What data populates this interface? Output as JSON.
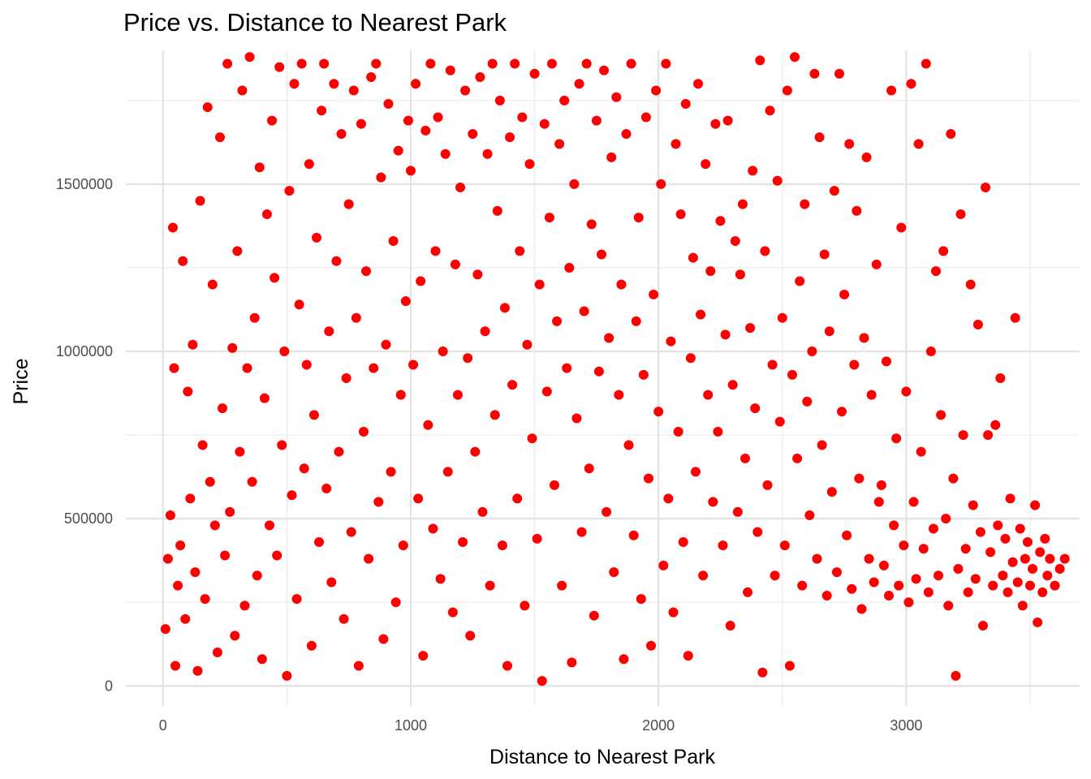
{
  "chart_data": {
    "type": "scatter",
    "title": "Price vs. Distance to Nearest Park",
    "xlabel": "Distance to Nearest Park",
    "ylabel": "Price",
    "xlim": [
      -150,
      3700
    ],
    "ylim": [
      -60000,
      1900000
    ],
    "x_ticks": [
      0,
      1000,
      2000,
      3000
    ],
    "y_ticks": [
      0,
      500000,
      1000000,
      1500000
    ],
    "x_tick_labels": [
      "0",
      "1000",
      "2000",
      "3000"
    ],
    "y_tick_labels": [
      "0",
      "500000",
      "1000000",
      "1500000"
    ],
    "point_color": "#ff0000",
    "grid": true,
    "legend": "none",
    "points_note": "dense cloud; representative sample of points",
    "points": [
      [
        10,
        170000
      ],
      [
        20,
        380000
      ],
      [
        30,
        510000
      ],
      [
        40,
        1370000
      ],
      [
        45,
        950000
      ],
      [
        50,
        60000
      ],
      [
        60,
        300000
      ],
      [
        70,
        420000
      ],
      [
        80,
        1270000
      ],
      [
        90,
        200000
      ],
      [
        100,
        880000
      ],
      [
        110,
        560000
      ],
      [
        120,
        1020000
      ],
      [
        130,
        340000
      ],
      [
        140,
        45000
      ],
      [
        150,
        1450000
      ],
      [
        160,
        720000
      ],
      [
        170,
        260000
      ],
      [
        180,
        1730000
      ],
      [
        190,
        610000
      ],
      [
        200,
        1200000
      ],
      [
        210,
        480000
      ],
      [
        220,
        100000
      ],
      [
        230,
        1640000
      ],
      [
        240,
        830000
      ],
      [
        250,
        390000
      ],
      [
        260,
        1860000
      ],
      [
        270,
        520000
      ],
      [
        280,
        1010000
      ],
      [
        290,
        150000
      ],
      [
        300,
        1300000
      ],
      [
        310,
        700000
      ],
      [
        320,
        1780000
      ],
      [
        330,
        240000
      ],
      [
        340,
        950000
      ],
      [
        350,
        1880000
      ],
      [
        360,
        610000
      ],
      [
        370,
        1100000
      ],
      [
        380,
        330000
      ],
      [
        390,
        1550000
      ],
      [
        400,
        80000
      ],
      [
        410,
        860000
      ],
      [
        420,
        1410000
      ],
      [
        430,
        480000
      ],
      [
        440,
        1690000
      ],
      [
        450,
        1220000
      ],
      [
        460,
        390000
      ],
      [
        470,
        1850000
      ],
      [
        480,
        720000
      ],
      [
        490,
        1000000
      ],
      [
        500,
        30000
      ],
      [
        510,
        1480000
      ],
      [
        520,
        570000
      ],
      [
        530,
        1800000
      ],
      [
        540,
        260000
      ],
      [
        550,
        1140000
      ],
      [
        560,
        1860000
      ],
      [
        570,
        650000
      ],
      [
        580,
        960000
      ],
      [
        590,
        1560000
      ],
      [
        600,
        120000
      ],
      [
        610,
        810000
      ],
      [
        620,
        1340000
      ],
      [
        630,
        430000
      ],
      [
        640,
        1720000
      ],
      [
        650,
        1860000
      ],
      [
        660,
        590000
      ],
      [
        670,
        1060000
      ],
      [
        680,
        310000
      ],
      [
        690,
        1800000
      ],
      [
        700,
        1270000
      ],
      [
        710,
        700000
      ],
      [
        720,
        1650000
      ],
      [
        730,
        200000
      ],
      [
        740,
        920000
      ],
      [
        750,
        1440000
      ],
      [
        760,
        460000
      ],
      [
        770,
        1780000
      ],
      [
        780,
        1100000
      ],
      [
        790,
        60000
      ],
      [
        800,
        1680000
      ],
      [
        810,
        760000
      ],
      [
        820,
        1240000
      ],
      [
        830,
        380000
      ],
      [
        840,
        1820000
      ],
      [
        850,
        950000
      ],
      [
        860,
        1860000
      ],
      [
        870,
        550000
      ],
      [
        880,
        1520000
      ],
      [
        890,
        140000
      ],
      [
        900,
        1020000
      ],
      [
        910,
        1740000
      ],
      [
        920,
        640000
      ],
      [
        930,
        1330000
      ],
      [
        940,
        250000
      ],
      [
        950,
        1600000
      ],
      [
        960,
        870000
      ],
      [
        970,
        420000
      ],
      [
        980,
        1150000
      ],
      [
        990,
        1690000
      ],
      [
        1000,
        1540000
      ],
      [
        1010,
        960000
      ],
      [
        1020,
        1800000
      ],
      [
        1030,
        560000
      ],
      [
        1040,
        1210000
      ],
      [
        1050,
        90000
      ],
      [
        1060,
        1660000
      ],
      [
        1070,
        780000
      ],
      [
        1080,
        1860000
      ],
      [
        1090,
        470000
      ],
      [
        1100,
        1300000
      ],
      [
        1110,
        1700000
      ],
      [
        1120,
        320000
      ],
      [
        1130,
        1000000
      ],
      [
        1140,
        1590000
      ],
      [
        1150,
        640000
      ],
      [
        1160,
        1840000
      ],
      [
        1170,
        220000
      ],
      [
        1180,
        1260000
      ],
      [
        1190,
        870000
      ],
      [
        1200,
        1490000
      ],
      [
        1210,
        430000
      ],
      [
        1220,
        1780000
      ],
      [
        1230,
        980000
      ],
      [
        1240,
        150000
      ],
      [
        1250,
        1650000
      ],
      [
        1260,
        700000
      ],
      [
        1270,
        1230000
      ],
      [
        1280,
        1820000
      ],
      [
        1290,
        520000
      ],
      [
        1300,
        1060000
      ],
      [
        1310,
        1590000
      ],
      [
        1320,
        300000
      ],
      [
        1330,
        1860000
      ],
      [
        1340,
        810000
      ],
      [
        1350,
        1420000
      ],
      [
        1360,
        1750000
      ],
      [
        1370,
        420000
      ],
      [
        1380,
        1130000
      ],
      [
        1390,
        60000
      ],
      [
        1400,
        1640000
      ],
      [
        1410,
        900000
      ],
      [
        1420,
        1860000
      ],
      [
        1430,
        560000
      ],
      [
        1440,
        1300000
      ],
      [
        1450,
        1700000
      ],
      [
        1460,
        240000
      ],
      [
        1470,
        1020000
      ],
      [
        1480,
        1560000
      ],
      [
        1490,
        740000
      ],
      [
        1500,
        1830000
      ],
      [
        1510,
        440000
      ],
      [
        1520,
        1200000
      ],
      [
        1530,
        15000
      ],
      [
        1540,
        1680000
      ],
      [
        1550,
        880000
      ],
      [
        1560,
        1400000
      ],
      [
        1570,
        1860000
      ],
      [
        1580,
        600000
      ],
      [
        1590,
        1090000
      ],
      [
        1600,
        1620000
      ],
      [
        1610,
        300000
      ],
      [
        1620,
        1750000
      ],
      [
        1630,
        950000
      ],
      [
        1640,
        1250000
      ],
      [
        1650,
        70000
      ],
      [
        1660,
        1500000
      ],
      [
        1670,
        800000
      ],
      [
        1680,
        1800000
      ],
      [
        1690,
        460000
      ],
      [
        1700,
        1120000
      ],
      [
        1710,
        1860000
      ],
      [
        1720,
        650000
      ],
      [
        1730,
        1380000
      ],
      [
        1740,
        210000
      ],
      [
        1750,
        1690000
      ],
      [
        1760,
        940000
      ],
      [
        1770,
        1290000
      ],
      [
        1780,
        1840000
      ],
      [
        1790,
        520000
      ],
      [
        1800,
        1040000
      ],
      [
        1810,
        1580000
      ],
      [
        1820,
        340000
      ],
      [
        1830,
        1760000
      ],
      [
        1840,
        870000
      ],
      [
        1850,
        1200000
      ],
      [
        1860,
        80000
      ],
      [
        1870,
        1650000
      ],
      [
        1880,
        720000
      ],
      [
        1890,
        1860000
      ],
      [
        1900,
        450000
      ],
      [
        1910,
        1090000
      ],
      [
        1920,
        1400000
      ],
      [
        1930,
        260000
      ],
      [
        1940,
        930000
      ],
      [
        1950,
        1700000
      ],
      [
        1960,
        620000
      ],
      [
        1970,
        120000
      ],
      [
        1980,
        1170000
      ],
      [
        1990,
        1780000
      ],
      [
        2000,
        820000
      ],
      [
        2010,
        1500000
      ],
      [
        2020,
        360000
      ],
      [
        2030,
        1860000
      ],
      [
        2040,
        560000
      ],
      [
        2050,
        1030000
      ],
      [
        2060,
        220000
      ],
      [
        2070,
        1620000
      ],
      [
        2080,
        760000
      ],
      [
        2090,
        1410000
      ],
      [
        2100,
        430000
      ],
      [
        2110,
        1740000
      ],
      [
        2120,
        90000
      ],
      [
        2130,
        980000
      ],
      [
        2140,
        1280000
      ],
      [
        2150,
        640000
      ],
      [
        2160,
        1800000
      ],
      [
        2170,
        1110000
      ],
      [
        2180,
        330000
      ],
      [
        2190,
        1560000
      ],
      [
        2200,
        870000
      ],
      [
        2210,
        1240000
      ],
      [
        2220,
        550000
      ],
      [
        2230,
        1680000
      ],
      [
        2240,
        760000
      ],
      [
        2250,
        1390000
      ],
      [
        2260,
        420000
      ],
      [
        2270,
        1050000
      ],
      [
        2280,
        1690000
      ],
      [
        2290,
        180000
      ],
      [
        2300,
        900000
      ],
      [
        2310,
        1330000
      ],
      [
        2320,
        520000
      ],
      [
        2330,
        1230000
      ],
      [
        2340,
        1440000
      ],
      [
        2350,
        680000
      ],
      [
        2360,
        280000
      ],
      [
        2370,
        1070000
      ],
      [
        2380,
        1540000
      ],
      [
        2390,
        830000
      ],
      [
        2400,
        460000
      ],
      [
        2410,
        1870000
      ],
      [
        2420,
        40000
      ],
      [
        2430,
        1300000
      ],
      [
        2440,
        600000
      ],
      [
        2450,
        1720000
      ],
      [
        2460,
        960000
      ],
      [
        2470,
        330000
      ],
      [
        2480,
        1510000
      ],
      [
        2490,
        790000
      ],
      [
        2500,
        1100000
      ],
      [
        2510,
        420000
      ],
      [
        2520,
        1780000
      ],
      [
        2530,
        60000
      ],
      [
        2540,
        930000
      ],
      [
        2550,
        1880000
      ],
      [
        2560,
        680000
      ],
      [
        2570,
        1210000
      ],
      [
        2580,
        300000
      ],
      [
        2590,
        1440000
      ],
      [
        2600,
        850000
      ],
      [
        2610,
        510000
      ],
      [
        2620,
        1000000
      ],
      [
        2630,
        1830000
      ],
      [
        2640,
        380000
      ],
      [
        2650,
        1640000
      ],
      [
        2660,
        720000
      ],
      [
        2670,
        1290000
      ],
      [
        2680,
        270000
      ],
      [
        2690,
        1060000
      ],
      [
        2700,
        580000
      ],
      [
        2710,
        1480000
      ],
      [
        2720,
        340000
      ],
      [
        2730,
        1830000
      ],
      [
        2740,
        820000
      ],
      [
        2750,
        1170000
      ],
      [
        2760,
        450000
      ],
      [
        2770,
        1620000
      ],
      [
        2780,
        290000
      ],
      [
        2790,
        960000
      ],
      [
        2800,
        1420000
      ],
      [
        2810,
        620000
      ],
      [
        2820,
        230000
      ],
      [
        2830,
        1040000
      ],
      [
        2840,
        1580000
      ],
      [
        2850,
        380000
      ],
      [
        2860,
        870000
      ],
      [
        2870,
        310000
      ],
      [
        2880,
        1260000
      ],
      [
        2890,
        550000
      ],
      [
        2900,
        600000
      ],
      [
        2910,
        360000
      ],
      [
        2920,
        970000
      ],
      [
        2930,
        270000
      ],
      [
        2940,
        1780000
      ],
      [
        2950,
        480000
      ],
      [
        2960,
        740000
      ],
      [
        2970,
        300000
      ],
      [
        2980,
        1370000
      ],
      [
        2990,
        420000
      ],
      [
        3000,
        880000
      ],
      [
        3010,
        250000
      ],
      [
        3020,
        1800000
      ],
      [
        3030,
        550000
      ],
      [
        3040,
        320000
      ],
      [
        3050,
        1620000
      ],
      [
        3060,
        700000
      ],
      [
        3070,
        410000
      ],
      [
        3080,
        1860000
      ],
      [
        3090,
        280000
      ],
      [
        3100,
        1000000
      ],
      [
        3110,
        470000
      ],
      [
        3120,
        1240000
      ],
      [
        3130,
        330000
      ],
      [
        3140,
        810000
      ],
      [
        3150,
        1300000
      ],
      [
        3160,
        500000
      ],
      [
        3170,
        240000
      ],
      [
        3180,
        1650000
      ],
      [
        3190,
        620000
      ],
      [
        3200,
        30000
      ],
      [
        3210,
        350000
      ],
      [
        3220,
        1410000
      ],
      [
        3230,
        750000
      ],
      [
        3240,
        410000
      ],
      [
        3250,
        280000
      ],
      [
        3260,
        1200000
      ],
      [
        3270,
        540000
      ],
      [
        3280,
        320000
      ],
      [
        3290,
        1080000
      ],
      [
        3300,
        460000
      ],
      [
        3310,
        180000
      ],
      [
        3320,
        1490000
      ],
      [
        3330,
        750000
      ],
      [
        3340,
        400000
      ],
      [
        3350,
        300000
      ],
      [
        3360,
        780000
      ],
      [
        3370,
        480000
      ],
      [
        3380,
        920000
      ],
      [
        3390,
        330000
      ],
      [
        3400,
        440000
      ],
      [
        3410,
        280000
      ],
      [
        3420,
        560000
      ],
      [
        3430,
        370000
      ],
      [
        3440,
        1100000
      ],
      [
        3450,
        310000
      ],
      [
        3460,
        470000
      ],
      [
        3470,
        240000
      ],
      [
        3480,
        380000
      ],
      [
        3490,
        430000
      ],
      [
        3500,
        300000
      ],
      [
        3510,
        350000
      ],
      [
        3520,
        540000
      ],
      [
        3530,
        190000
      ],
      [
        3540,
        400000
      ],
      [
        3550,
        280000
      ],
      [
        3560,
        440000
      ],
      [
        3570,
        330000
      ],
      [
        3580,
        380000
      ],
      [
        3600,
        300000
      ],
      [
        3620,
        350000
      ],
      [
        3640,
        380000
      ]
    ]
  }
}
